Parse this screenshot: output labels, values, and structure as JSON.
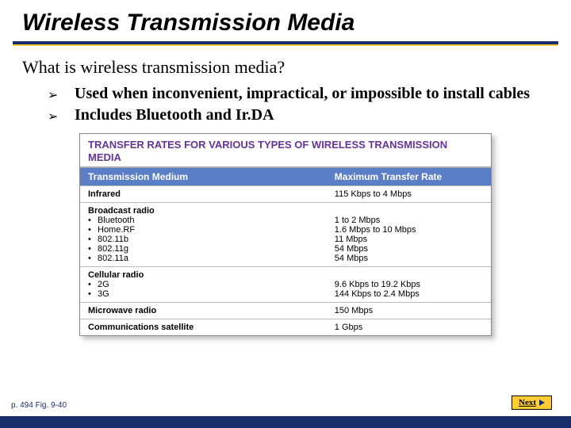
{
  "colors": {
    "slide_bg": "#ffffff",
    "frame_bg": "#1a2d6b",
    "accent": "#ffcc33",
    "table_header_bg": "#5b7fc7",
    "caption_color": "#663399",
    "border_color": "#bbbbbb"
  },
  "title": "Wireless Transmission Media",
  "subtitle": "What is wireless transmission media?",
  "bullets": [
    "Used when inconvenient, impractical, or impossible to install cables",
    "Includes Bluetooth and Ir.DA"
  ],
  "table": {
    "caption": "TRANSFER RATES FOR VARIOUS TYPES OF WIRELESS TRANSMISSION MEDIA",
    "columns": [
      "Transmission Medium",
      "Maximum Transfer Rate"
    ],
    "rows": [
      {
        "medium": "Infrared",
        "sub": [],
        "rates": [
          "115 Kbps to 4 Mbps"
        ]
      },
      {
        "medium": "Broadcast radio",
        "sub": [
          "Bluetooth",
          "Home.RF",
          "802.11b",
          "802.11g",
          "802.11a"
        ],
        "rates": [
          "1 to 2 Mbps",
          "1.6 Mbps to 10 Mbps",
          "11 Mbps",
          "54 Mbps",
          "54 Mbps"
        ]
      },
      {
        "medium": "Cellular radio",
        "sub": [
          "2G",
          "3G"
        ],
        "rates": [
          "9.6 Kbps to 19.2 Kbps",
          "144 Kbps to 2.4 Mbps"
        ]
      },
      {
        "medium": "Microwave radio",
        "sub": [],
        "rates": [
          "150 Mbps"
        ]
      },
      {
        "medium": "Communications satellite",
        "sub": [],
        "rates": [
          "1 Gbps"
        ]
      }
    ]
  },
  "footer": {
    "left": "p. 494 Fig. 9-40",
    "next_label": "Next"
  }
}
